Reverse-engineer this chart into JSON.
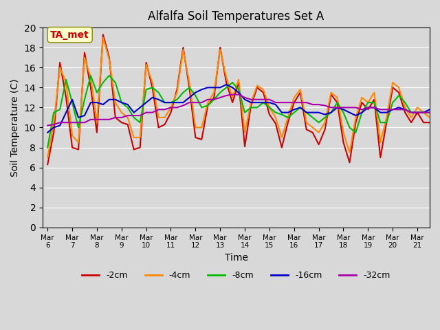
{
  "title": "Alfalfa Soil Temperatures Set A",
  "xlabel": "Time",
  "ylabel": "Soil Temperature (C)",
  "annotation": "TA_met",
  "ylim": [
    0,
    20
  ],
  "yticks": [
    0,
    2,
    4,
    6,
    8,
    10,
    12,
    14,
    16,
    18,
    20
  ],
  "x_labels": [
    "Mar 6",
    "Mar 7",
    "Mar 8",
    "Mar 9",
    "Mar 10",
    "Mar 11",
    "Mar 12",
    "Mar 13",
    "Mar 14",
    "Mar 15",
    "Mar 16",
    "Mar 17",
    "Mar 18",
    "Mar 19",
    "Mar 20",
    "Mar 21"
  ],
  "background_color": "#e8e8e8",
  "plot_bg_color": "#d8d8d8",
  "series": {
    "-2cm": {
      "color": "#cc0000",
      "lw": 1.5
    },
    "-4cm": {
      "color": "#ff8800",
      "lw": 1.5
    },
    "-8cm": {
      "color": "#00bb00",
      "lw": 1.5
    },
    "-16cm": {
      "color": "#0000cc",
      "lw": 1.5
    },
    "-32cm": {
      "color": "#aa00aa",
      "lw": 1.5
    }
  },
  "data": {
    "x": [
      0,
      0.25,
      0.5,
      0.75,
      1.0,
      1.25,
      1.5,
      1.75,
      2.0,
      2.25,
      2.5,
      2.75,
      3.0,
      3.25,
      3.5,
      3.75,
      4.0,
      4.25,
      4.5,
      4.75,
      5.0,
      5.25,
      5.5,
      5.75,
      6.0,
      6.25,
      6.5,
      6.75,
      7.0,
      7.25,
      7.5,
      7.75,
      8.0,
      8.25,
      8.5,
      8.75,
      9.0,
      9.25,
      9.5,
      9.75,
      10.0,
      10.25,
      10.5,
      10.75,
      11.0,
      11.25,
      11.5,
      11.75,
      12.0,
      12.25,
      12.5,
      12.75,
      13.0,
      13.25,
      13.5,
      13.75,
      14.0,
      14.25,
      14.5,
      14.75,
      15.0,
      15.25,
      15.5,
      15.75
    ],
    "neg2cm": [
      6.3,
      9.5,
      16.5,
      13.0,
      8.0,
      7.8,
      17.5,
      14.0,
      9.5,
      19.3,
      17.0,
      11.0,
      10.5,
      10.3,
      7.8,
      8.0,
      16.5,
      14.0,
      10.0,
      10.3,
      11.5,
      13.8,
      18.0,
      14.0,
      9.0,
      8.8,
      12.2,
      13.0,
      18.0,
      14.5,
      12.5,
      14.5,
      8.1,
      12.2,
      14.0,
      13.5,
      11.3,
      10.4,
      8.0,
      10.5,
      12.5,
      13.5,
      9.8,
      9.5,
      8.3,
      9.8,
      13.3,
      12.5,
      8.5,
      6.5,
      10.5,
      12.5,
      11.8,
      12.8,
      7.0,
      10.5,
      14.0,
      13.5,
      11.5,
      10.5,
      11.5,
      10.5,
      10.5,
      10.5
    ],
    "neg4cm": [
      7.0,
      10.5,
      16.0,
      14.5,
      9.2,
      8.5,
      17.0,
      15.0,
      10.5,
      19.0,
      16.8,
      12.5,
      11.5,
      11.0,
      9.0,
      9.0,
      16.3,
      14.5,
      11.0,
      11.0,
      12.0,
      13.5,
      17.8,
      14.5,
      10.0,
      10.0,
      12.5,
      13.5,
      17.8,
      15.0,
      13.0,
      14.8,
      9.5,
      12.5,
      14.2,
      13.8,
      12.0,
      11.0,
      9.0,
      11.0,
      13.0,
      13.8,
      10.5,
      10.0,
      9.5,
      10.5,
      13.5,
      13.0,
      9.5,
      7.5,
      11.0,
      13.0,
      12.5,
      13.5,
      8.5,
      11.0,
      14.5,
      14.0,
      12.0,
      11.0,
      12.0,
      11.5,
      11.0,
      11.0
    ],
    "neg8cm": [
      8.0,
      11.5,
      11.8,
      14.8,
      12.5,
      10.0,
      12.8,
      15.2,
      13.5,
      14.5,
      15.2,
      14.5,
      12.5,
      12.0,
      11.0,
      10.5,
      13.8,
      14.0,
      13.5,
      12.5,
      12.5,
      12.8,
      13.5,
      14.0,
      13.2,
      12.0,
      12.2,
      12.8,
      13.5,
      14.0,
      14.5,
      13.8,
      11.5,
      12.0,
      12.0,
      12.5,
      12.0,
      11.5,
      11.3,
      11.0,
      11.5,
      12.0,
      11.5,
      11.0,
      10.5,
      11.0,
      11.5,
      12.5,
      11.5,
      10.0,
      9.5,
      11.5,
      12.5,
      12.5,
      10.5,
      10.5,
      12.5,
      13.2,
      12.5,
      11.5,
      11.5,
      11.5,
      11.5,
      11.5
    ],
    "neg16cm": [
      9.5,
      10.0,
      10.2,
      11.5,
      12.8,
      11.0,
      11.2,
      12.5,
      12.5,
      12.3,
      12.8,
      12.8,
      12.5,
      12.3,
      11.5,
      12.0,
      12.5,
      13.0,
      12.8,
      12.5,
      12.5,
      12.5,
      12.5,
      13.0,
      13.5,
      13.8,
      14.0,
      14.0,
      14.0,
      14.3,
      14.0,
      13.5,
      12.8,
      12.5,
      12.5,
      12.5,
      12.5,
      12.3,
      11.5,
      11.5,
      11.8,
      12.0,
      11.5,
      11.5,
      11.5,
      11.3,
      11.5,
      12.0,
      11.8,
      11.5,
      11.2,
      11.5,
      12.0,
      12.0,
      11.5,
      11.5,
      11.8,
      12.0,
      11.8,
      11.5,
      11.5,
      11.5,
      11.8,
      11.8
    ],
    "neg32cm": [
      10.2,
      10.3,
      10.5,
      10.5,
      10.5,
      10.5,
      10.5,
      10.8,
      10.8,
      10.8,
      10.8,
      11.0,
      11.0,
      11.2,
      11.2,
      11.2,
      11.5,
      11.5,
      11.8,
      11.8,
      12.0,
      12.0,
      12.2,
      12.5,
      12.5,
      12.5,
      12.8,
      12.8,
      13.0,
      13.2,
      13.3,
      13.3,
      13.0,
      12.8,
      12.8,
      12.8,
      12.8,
      12.5,
      12.5,
      12.5,
      12.5,
      12.5,
      12.5,
      12.3,
      12.3,
      12.2,
      12.0,
      12.0,
      12.0,
      12.0,
      12.0,
      11.8,
      12.0,
      12.0,
      11.8,
      11.8,
      11.8,
      11.8,
      11.8,
      11.5,
      11.5,
      11.5,
      11.5,
      11.5
    ]
  }
}
